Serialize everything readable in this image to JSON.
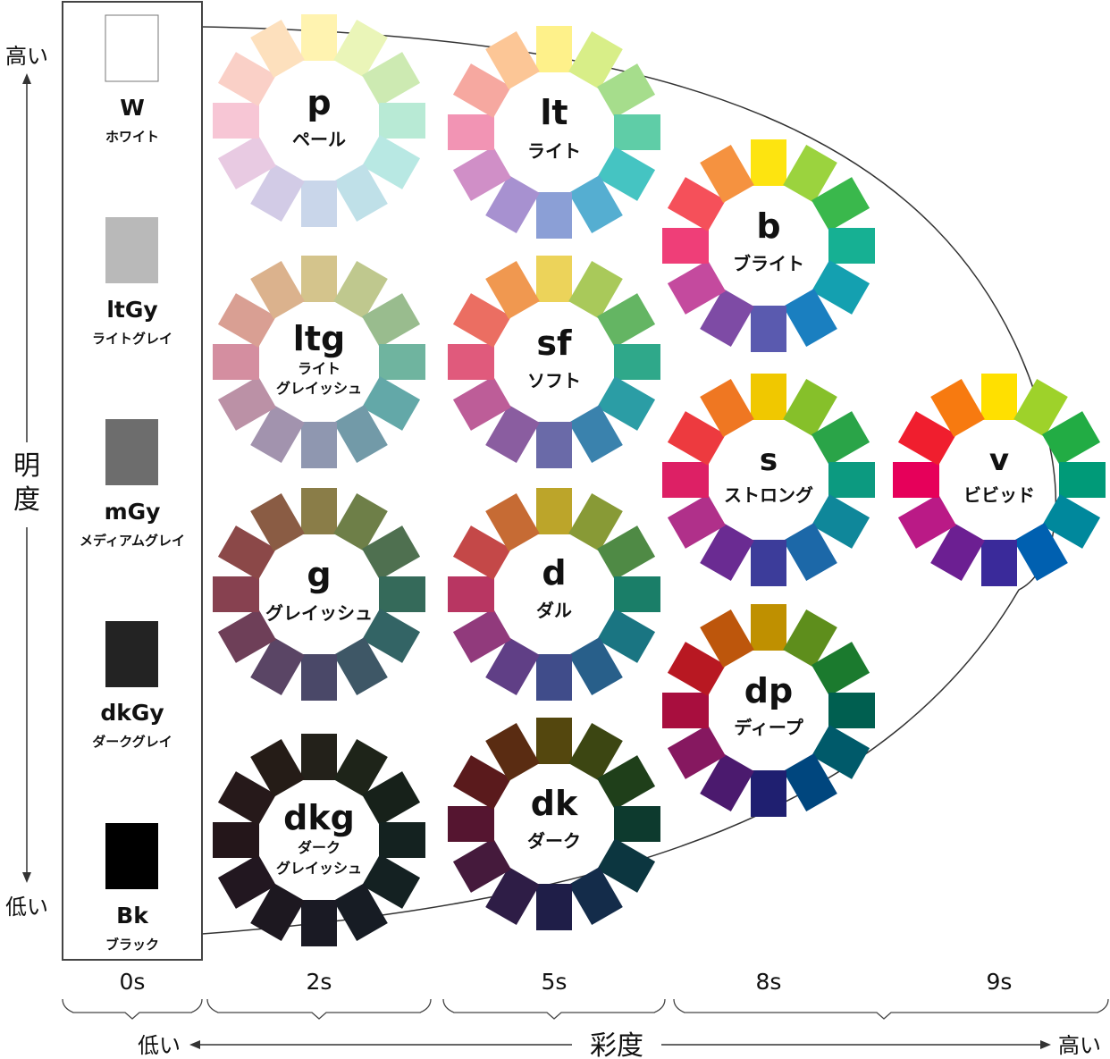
{
  "vertical_axis": {
    "label_line1": "明",
    "label_line2": "度",
    "high": "高い",
    "low": "低い"
  },
  "horizontal_axis": {
    "label": "彩度",
    "low": "低い",
    "high": "高い"
  },
  "columns": [
    "0s",
    "2s",
    "5s",
    "8s",
    "9s"
  ],
  "grays": [
    {
      "code": "W",
      "name": "ホワイト",
      "color": "#ffffff"
    },
    {
      "code": "ltGy",
      "name": "ライトグレイ",
      "color": "#b9b9b9"
    },
    {
      "code": "mGy",
      "name": "メディアムグレイ",
      "color": "#6d6d6d"
    },
    {
      "code": "dkGy",
      "name": "ダークグレイ",
      "color": "#232323"
    },
    {
      "code": "Bk",
      "name": "ブラック",
      "color": "#000000"
    }
  ],
  "tones": [
    {
      "id": "p",
      "code": "p",
      "name": [
        "ペール"
      ],
      "colors": [
        "#fff3b0",
        "#eaf5b8",
        "#cdeab2",
        "#b8ead5",
        "#b8e8e3",
        "#bfe0e8",
        "#c9d6ea",
        "#d2cbe6",
        "#e8cae2",
        "#f7c6d5",
        "#fad0c7",
        "#fde0bd"
      ]
    },
    {
      "id": "lt",
      "code": "lt",
      "name": [
        "ライト"
      ],
      "colors": [
        "#fef18a",
        "#d8ee88",
        "#a6dd8c",
        "#5fcda7",
        "#45c4c2",
        "#55aed1",
        "#8b9fd6",
        "#a791d0",
        "#d08fc7",
        "#f294b4",
        "#f6a8a0",
        "#fcc696"
      ]
    },
    {
      "id": "b",
      "code": "b",
      "name": [
        "ブライト"
      ],
      "colors": [
        "#fde410",
        "#9bd33e",
        "#3ab84c",
        "#16b093",
        "#14a0b0",
        "#1a7fc0",
        "#5a5aaf",
        "#7e4ba5",
        "#c44a9e",
        "#ef3e78",
        "#f5505a",
        "#f59240"
      ]
    },
    {
      "id": "ltg",
      "code": "ltg",
      "name": [
        "ライト",
        "グレイッシュ"
      ],
      "colors": [
        "#d4c48c",
        "#bfc88e",
        "#99bc8e",
        "#6fb49f",
        "#63a8a8",
        "#729aa8",
        "#8f97b0",
        "#a293ae",
        "#bb91a6",
        "#d48ea0",
        "#d99f93",
        "#dbb28d"
      ]
    },
    {
      "id": "sf",
      "code": "sf",
      "name": [
        "ソフト"
      ],
      "colors": [
        "#ecd35a",
        "#a9c95a",
        "#64b563",
        "#2fa88a",
        "#2b9da5",
        "#3a82ad",
        "#6a6aa8",
        "#8a5da0",
        "#bd5d98",
        "#e05a7c",
        "#eb6e62",
        "#f09850"
      ]
    },
    {
      "id": "s",
      "code": "s",
      "name": [
        "ストロング"
      ],
      "colors": [
        "#f0c800",
        "#86c02a",
        "#2aa448",
        "#0c9a80",
        "#0f879a",
        "#1c68a8",
        "#3c3c9a",
        "#6a2b92",
        "#b0308a",
        "#dd2065",
        "#ed3a3f",
        "#ef7722"
      ]
    },
    {
      "id": "v",
      "code": "v",
      "name": [
        "ビビッド"
      ],
      "colors": [
        "#ffe000",
        "#9ed22a",
        "#22ac44",
        "#009a78",
        "#00889c",
        "#0060b0",
        "#3a2a9a",
        "#6c1f92",
        "#ba1a86",
        "#e6005a",
        "#f01e2e",
        "#f77a10"
      ]
    },
    {
      "id": "g",
      "code": "g",
      "name": [
        "グレイッシュ"
      ],
      "colors": [
        "#8a7d48",
        "#6e7f48",
        "#4f7050",
        "#356a5a",
        "#336465",
        "#3e5766",
        "#4a4868",
        "#5a4565",
        "#6e3f58",
        "#874150",
        "#8b4848",
        "#8a5c44"
      ]
    },
    {
      "id": "d",
      "code": "d",
      "name": [
        "ダル"
      ],
      "colors": [
        "#bca52a",
        "#889a36",
        "#4f8a45",
        "#1a7e68",
        "#1a7582",
        "#285f8a",
        "#404c8a",
        "#603f86",
        "#913a7c",
        "#b83662",
        "#c44848",
        "#c66b34"
      ]
    },
    {
      "id": "dp",
      "code": "dp",
      "name": [
        "ディープ"
      ],
      "colors": [
        "#bf9000",
        "#5e8e1c",
        "#1b7a2e",
        "#005f50",
        "#005a6a",
        "#00467e",
        "#1f1f70",
        "#4b1a6e",
        "#861860",
        "#a80e3e",
        "#b81822",
        "#bd560c"
      ]
    },
    {
      "id": "dkg",
      "code": "dkg",
      "name": [
        "ダーク",
        "グレイッシュ"
      ],
      "colors": [
        "#23211a",
        "#1e2419",
        "#17211a",
        "#142220",
        "#142122",
        "#171c24",
        "#1a1a24",
        "#1d1820",
        "#221720",
        "#24161a",
        "#26191a",
        "#251c17"
      ]
    },
    {
      "id": "dk",
      "code": "dk",
      "name": [
        "ダーク"
      ],
      "colors": [
        "#54470e",
        "#3c4612",
        "#1f3f1a",
        "#0d3a2e",
        "#0c3640",
        "#142c4a",
        "#1f1e48",
        "#2e1d46",
        "#451a3c",
        "#551530",
        "#5a1a1c",
        "#5a2c12"
      ]
    }
  ]
}
